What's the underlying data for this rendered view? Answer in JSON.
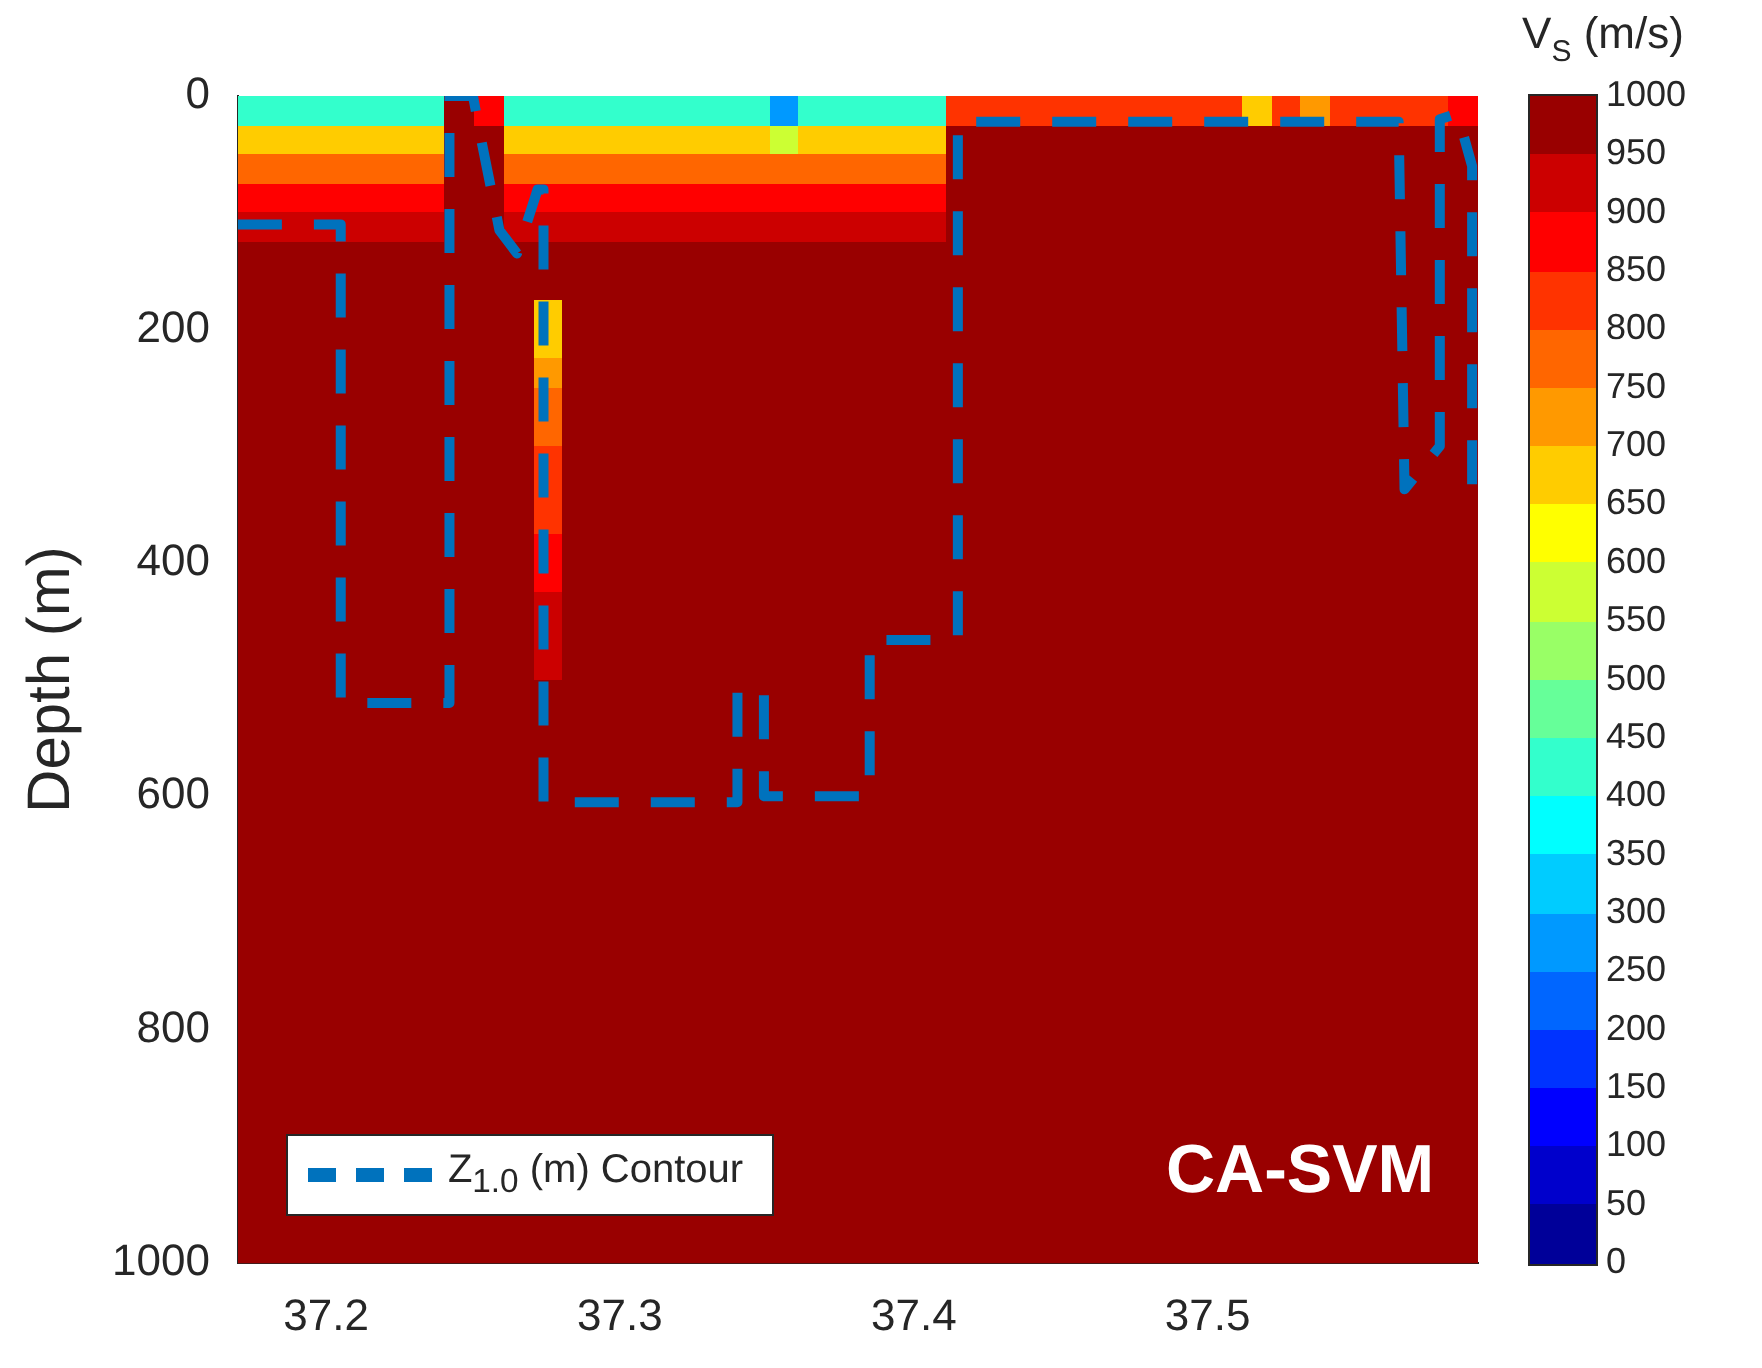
{
  "chart_data": {
    "type": "heatmap",
    "ylabel": "Depth (m)",
    "clabel": "V$_{S}$ (m/s)",
    "annotations": [
      "CA-SVM"
    ],
    "xlim": [
      37.17,
      37.592
    ],
    "xticks": [
      37.2,
      37.3,
      37.4,
      37.5
    ],
    "ylim": [
      1000,
      0
    ],
    "yticks": [
      0,
      200,
      400,
      600,
      800,
      1000
    ],
    "clim": [
      0,
      1000
    ],
    "cticks": [
      0,
      50,
      100,
      150,
      200,
      250,
      300,
      350,
      400,
      450,
      500,
      550,
      600,
      650,
      700,
      750,
      800,
      850,
      900,
      950,
      1000
    ],
    "legend": "bottom left",
    "cells": [
      [
        420,
        420,
        420,
        420,
        420,
        420,
        420,
        1000,
        850,
        420,
        420,
        420,
        420,
        420,
        420,
        420,
        420,
        420,
        250,
        420,
        420,
        420,
        420,
        420,
        820,
        820,
        820,
        820,
        820,
        820,
        820,
        820,
        820,
        820,
        650,
        820,
        700,
        820,
        820,
        820,
        820,
        880
      ],
      [
        660,
        660,
        660,
        660,
        660,
        660,
        660,
        1000,
        980,
        660,
        660,
        660,
        660,
        660,
        660,
        660,
        660,
        660,
        580,
        660,
        660,
        660,
        660,
        660,
        1000,
        1000,
        1000,
        1000,
        1000,
        1000,
        1000,
        1000,
        1000,
        1000,
        1000,
        1000,
        1000,
        1000,
        1000,
        1000,
        1000,
        1000
      ],
      [
        780,
        780,
        780,
        780,
        780,
        780,
        780,
        1000,
        1000,
        780,
        780,
        780,
        780,
        780,
        780,
        780,
        780,
        780,
        760,
        780,
        780,
        780,
        780,
        780,
        1000,
        1000,
        1000,
        1000,
        1000,
        1000,
        1000,
        1000,
        1000,
        1000,
        1000,
        1000,
        1000,
        1000,
        1000,
        1000,
        1000,
        1000
      ],
      [
        870,
        870,
        870,
        870,
        870,
        870,
        870,
        1000,
        1000,
        870,
        870,
        870,
        870,
        870,
        870,
        870,
        870,
        870,
        860,
        870,
        870,
        870,
        870,
        870,
        1000,
        1000,
        1000,
        1000,
        1000,
        1000,
        1000,
        1000,
        1000,
        1000,
        1000,
        1000,
        1000,
        1000,
        1000,
        1000,
        1000,
        1000
      ],
      [
        940,
        940,
        940,
        940,
        940,
        940,
        940,
        1000,
        1000,
        940,
        940,
        940,
        940,
        940,
        940,
        940,
        940,
        940,
        930,
        940,
        940,
        940,
        940,
        940,
        1000,
        1000,
        1000,
        1000,
        1000,
        1000,
        1000,
        1000,
        1000,
        1000,
        1000,
        1000,
        1000,
        1000,
        1000,
        1000,
        1000,
        1000
      ],
      [
        990,
        990,
        990,
        990,
        990,
        990,
        990,
        1000,
        1000,
        990,
        990,
        990,
        990,
        990,
        990,
        990,
        990,
        990,
        990,
        990,
        990,
        990,
        990,
        990,
        1000,
        1000,
        1000,
        1000,
        1000,
        1000,
        1000,
        1000,
        1000,
        1000,
        1000,
        1000,
        1000,
        1000,
        1000,
        1000,
        1000,
        1000
      ],
      [
        1000,
        1000,
        1000,
        1000,
        1000,
        1000,
        1000,
        1000,
        1000,
        1000,
        1000,
        1000,
        1000,
        1000,
        1000,
        1000,
        1000,
        1000,
        1000,
        1000,
        1000,
        1000,
        1000,
        1000,
        1000,
        1000,
        1000,
        1000,
        1000,
        1000,
        1000,
        1000,
        1000,
        1000,
        1000,
        1000,
        1000,
        1000,
        1000,
        1000,
        1000,
        1000
      ],
      [
        1000,
        1000,
        1000,
        1000,
        1000,
        1000,
        1000,
        1000,
        1000,
        1000,
        650,
        1000,
        1000,
        1000,
        1000,
        1000,
        1000,
        1000,
        1000,
        1000,
        1000,
        1000,
        1000,
        1000,
        1000,
        1000,
        1000,
        1000,
        1000,
        1000,
        1000,
        1000,
        1000,
        1000,
        1000,
        1000,
        1000,
        1000,
        1000,
        1000,
        1000,
        1000
      ],
      [
        1000,
        1000,
        1000,
        1000,
        1000,
        1000,
        1000,
        1000,
        1000,
        1000,
        680,
        1000,
        1000,
        1000,
        1000,
        1000,
        1000,
        1000,
        1000,
        1000,
        1000,
        1000,
        1000,
        1000,
        1000,
        1000,
        1000,
        1000,
        1000,
        1000,
        1000,
        1000,
        1000,
        1000,
        1000,
        1000,
        1000,
        1000,
        1000,
        1000,
        1000,
        1000
      ],
      [
        1000,
        1000,
        1000,
        1000,
        1000,
        1000,
        1000,
        1000,
        1000,
        1000,
        720,
        1000,
        1000,
        1000,
        1000,
        1000,
        1000,
        1000,
        1000,
        1000,
        1000,
        1000,
        1000,
        1000,
        1000,
        1000,
        1000,
        1000,
        1000,
        1000,
        1000,
        1000,
        1000,
        1000,
        1000,
        1000,
        1000,
        1000,
        1000,
        1000,
        1000,
        1000
      ],
      [
        1000,
        1000,
        1000,
        1000,
        1000,
        1000,
        1000,
        1000,
        1000,
        1000,
        760,
        1000,
        1000,
        1000,
        1000,
        1000,
        1000,
        1000,
        1000,
        1000,
        1000,
        1000,
        1000,
        1000,
        1000,
        1000,
        1000,
        1000,
        1000,
        1000,
        1000,
        1000,
        1000,
        1000,
        1000,
        1000,
        1000,
        1000,
        1000,
        1000,
        1000,
        1000
      ],
      [
        1000,
        1000,
        1000,
        1000,
        1000,
        1000,
        1000,
        1000,
        1000,
        1000,
        780,
        1000,
        1000,
        1000,
        1000,
        1000,
        1000,
        1000,
        1000,
        1000,
        1000,
        1000,
        1000,
        1000,
        1000,
        1000,
        1000,
        1000,
        1000,
        1000,
        1000,
        1000,
        1000,
        1000,
        1000,
        1000,
        1000,
        1000,
        1000,
        1000,
        1000,
        1000
      ],
      [
        1000,
        1000,
        1000,
        1000,
        1000,
        1000,
        1000,
        1000,
        1000,
        1000,
        800,
        1000,
        1000,
        1000,
        1000,
        1000,
        1000,
        1000,
        1000,
        1000,
        1000,
        1000,
        1000,
        1000,
        1000,
        1000,
        1000,
        1000,
        1000,
        1000,
        1000,
        1000,
        1000,
        1000,
        1000,
        1000,
        1000,
        1000,
        1000,
        1000,
        1000,
        1000
      ],
      [
        1000,
        1000,
        1000,
        1000,
        1000,
        1000,
        1000,
        1000,
        1000,
        1000,
        820,
        1000,
        1000,
        1000,
        1000,
        1000,
        1000,
        1000,
        1000,
        1000,
        1000,
        1000,
        1000,
        1000,
        1000,
        1000,
        1000,
        1000,
        1000,
        1000,
        1000,
        1000,
        1000,
        1000,
        1000,
        1000,
        1000,
        1000,
        1000,
        1000,
        1000,
        1000
      ],
      [
        1000,
        1000,
        1000,
        1000,
        1000,
        1000,
        1000,
        1000,
        1000,
        1000,
        840,
        1000,
        1000,
        1000,
        1000,
        1000,
        1000,
        1000,
        1000,
        1000,
        1000,
        1000,
        1000,
        1000,
        1000,
        1000,
        1000,
        1000,
        1000,
        1000,
        1000,
        1000,
        1000,
        1000,
        1000,
        1000,
        1000,
        1000,
        1000,
        1000,
        1000,
        1000
      ],
      [
        1000,
        1000,
        1000,
        1000,
        1000,
        1000,
        1000,
        1000,
        1000,
        1000,
        860,
        1000,
        1000,
        1000,
        1000,
        1000,
        1000,
        1000,
        1000,
        1000,
        1000,
        1000,
        1000,
        1000,
        1000,
        1000,
        1000,
        1000,
        1000,
        1000,
        1000,
        1000,
        1000,
        1000,
        1000,
        1000,
        1000,
        1000,
        1000,
        1000,
        1000,
        1000
      ],
      [
        1000,
        1000,
        1000,
        1000,
        1000,
        1000,
        1000,
        1000,
        1000,
        1000,
        880,
        1000,
        1000,
        1000,
        1000,
        1000,
        1000,
        1000,
        1000,
        1000,
        1000,
        1000,
        1000,
        1000,
        1000,
        1000,
        1000,
        1000,
        1000,
        1000,
        1000,
        1000,
        1000,
        1000,
        1000,
        1000,
        1000,
        1000,
        1000,
        1000,
        1000,
        1000
      ],
      [
        1000,
        1000,
        1000,
        1000,
        1000,
        1000,
        1000,
        1000,
        1000,
        1000,
        900,
        1000,
        1000,
        1000,
        1000,
        1000,
        1000,
        1000,
        1000,
        1000,
        1000,
        1000,
        1000,
        1000,
        1000,
        1000,
        1000,
        1000,
        1000,
        1000,
        1000,
        1000,
        1000,
        1000,
        1000,
        1000,
        1000,
        1000,
        1000,
        1000,
        1000,
        1000
      ],
      [
        1000,
        1000,
        1000,
        1000,
        1000,
        1000,
        1000,
        1000,
        1000,
        1000,
        910,
        1000,
        1000,
        1000,
        1000,
        1000,
        1000,
        1000,
        1000,
        1000,
        1000,
        1000,
        1000,
        1000,
        1000,
        1000,
        1000,
        1000,
        1000,
        1000,
        1000,
        1000,
        1000,
        1000,
        1000,
        1000,
        1000,
        1000,
        1000,
        1000,
        1000,
        1000
      ],
      [
        1000,
        1000,
        1000,
        1000,
        1000,
        1000,
        1000,
        1000,
        1000,
        1000,
        930,
        1000,
        1000,
        1000,
        1000,
        1000,
        1000,
        1000,
        1000,
        1000,
        1000,
        1000,
        1000,
        1000,
        1000,
        1000,
        1000,
        1000,
        1000,
        1000,
        1000,
        1000,
        1000,
        1000,
        1000,
        1000,
        1000,
        1000,
        1000,
        1000,
        1000,
        1000
      ],
      [
        1000,
        1000,
        1000,
        1000,
        1000,
        1000,
        1000,
        1000,
        1000,
        1000,
        950,
        1000,
        1000,
        1000,
        1000,
        1000,
        1000,
        1000,
        1000,
        1000,
        1000,
        1000,
        1000,
        1000,
        1000,
        1000,
        1000,
        1000,
        1000,
        1000,
        1000,
        1000,
        1000,
        1000,
        1000,
        1000,
        1000,
        1000,
        1000,
        1000,
        1000,
        1000
      ],
      [
        1000,
        1000,
        1000,
        1000,
        1000,
        1000,
        1000,
        1000,
        1000,
        1000,
        960,
        1000,
        1000,
        1000,
        1000,
        1000,
        1000,
        1000,
        1000,
        1000,
        1000,
        1000,
        1000,
        1000,
        1000,
        1000,
        1000,
        1000,
        1000,
        1000,
        1000,
        1000,
        1000,
        1000,
        1000,
        1000,
        1000,
        1000,
        1000,
        1000,
        1000,
        1000
      ],
      [
        1000,
        1000,
        1000,
        1000,
        1000,
        1000,
        1000,
        1000,
        1000,
        1000,
        980,
        1000,
        1000,
        1000,
        1000,
        1000,
        1000,
        1000,
        1000,
        1000,
        1000,
        1000,
        1000,
        1000,
        1000,
        1000,
        1000,
        1000,
        1000,
        1000,
        1000,
        1000,
        1000,
        1000,
        1000,
        1000,
        1000,
        1000,
        1000,
        1000,
        1000,
        1000
      ],
      [
        1000,
        1000,
        1000,
        1000,
        1000,
        1000,
        1000,
        1000,
        1000,
        1000,
        1000,
        1000,
        1000,
        1000,
        1000,
        1000,
        1000,
        1000,
        1000,
        1000,
        1000,
        1000,
        1000,
        1000,
        1000,
        1000,
        1000,
        1000,
        1000,
        1000,
        1000,
        1000,
        1000,
        1000,
        1000,
        1000,
        1000,
        1000,
        1000,
        1000,
        1000,
        1000
      ],
      [
        1000,
        1000,
        1000,
        1000,
        1000,
        1000,
        1000,
        1000,
        1000,
        1000,
        1000,
        1000,
        1000,
        1000,
        1000,
        1000,
        1000,
        1000,
        1000,
        1000,
        1000,
        1000,
        1000,
        1000,
        1000,
        1000,
        1000,
        1000,
        1000,
        1000,
        1000,
        1000,
        1000,
        1000,
        1000,
        1000,
        1000,
        1000,
        1000,
        1000,
        1000,
        1000
      ],
      [
        1000,
        1000,
        1000,
        1000,
        1000,
        1000,
        1000,
        1000,
        1000,
        1000,
        1000,
        1000,
        1000,
        1000,
        1000,
        1000,
        1000,
        1000,
        1000,
        1000,
        1000,
        1000,
        1000,
        1000,
        1000,
        1000,
        1000,
        1000,
        1000,
        1000,
        1000,
        1000,
        1000,
        1000,
        1000,
        1000,
        1000,
        1000,
        1000,
        1000,
        1000,
        1000
      ],
      [
        1000,
        1000,
        1000,
        1000,
        1000,
        1000,
        1000,
        1000,
        1000,
        1000,
        1000,
        1000,
        1000,
        1000,
        1000,
        1000,
        1000,
        1000,
        1000,
        1000,
        1000,
        1000,
        1000,
        1000,
        1000,
        1000,
        1000,
        1000,
        1000,
        1000,
        1000,
        1000,
        1000,
        1000,
        1000,
        1000,
        1000,
        1000,
        1000,
        1000,
        1000,
        1000
      ],
      [
        1000,
        1000,
        1000,
        1000,
        1000,
        1000,
        1000,
        1000,
        1000,
        1000,
        1000,
        1000,
        1000,
        1000,
        1000,
        1000,
        1000,
        1000,
        1000,
        1000,
        1000,
        1000,
        1000,
        1000,
        1000,
        1000,
        1000,
        1000,
        1000,
        1000,
        1000,
        1000,
        1000,
        1000,
        1000,
        1000,
        1000,
        1000,
        1000,
        1000,
        1000,
        1000
      ],
      [
        1000,
        1000,
        1000,
        1000,
        1000,
        1000,
        1000,
        1000,
        1000,
        1000,
        1000,
        1000,
        1000,
        1000,
        1000,
        1000,
        1000,
        1000,
        1000,
        1000,
        1000,
        1000,
        1000,
        1000,
        1000,
        1000,
        1000,
        1000,
        1000,
        1000,
        1000,
        1000,
        1000,
        1000,
        1000,
        1000,
        1000,
        1000,
        1000,
        1000,
        1000,
        1000
      ],
      [
        1000,
        1000,
        1000,
        1000,
        1000,
        1000,
        1000,
        1000,
        1000,
        1000,
        1000,
        1000,
        1000,
        1000,
        1000,
        1000,
        1000,
        1000,
        1000,
        1000,
        1000,
        1000,
        1000,
        1000,
        1000,
        1000,
        1000,
        1000,
        1000,
        1000,
        1000,
        1000,
        1000,
        1000,
        1000,
        1000,
        1000,
        1000,
        1000,
        1000,
        1000,
        1000
      ],
      [
        1000,
        1000,
        1000,
        1000,
        1000,
        1000,
        1000,
        1000,
        1000,
        1000,
        1000,
        1000,
        1000,
        1000,
        1000,
        1000,
        1000,
        1000,
        1000,
        1000,
        1000,
        1000,
        1000,
        1000,
        1000,
        1000,
        1000,
        1000,
        1000,
        1000,
        1000,
        1000,
        1000,
        1000,
        1000,
        1000,
        1000,
        1000,
        1000,
        1000,
        1000,
        1000
      ],
      [
        1000,
        1000,
        1000,
        1000,
        1000,
        1000,
        1000,
        1000,
        1000,
        1000,
        1000,
        1000,
        1000,
        1000,
        1000,
        1000,
        1000,
        1000,
        1000,
        1000,
        1000,
        1000,
        1000,
        1000,
        1000,
        1000,
        1000,
        1000,
        1000,
        1000,
        1000,
        1000,
        1000,
        1000,
        1000,
        1000,
        1000,
        1000,
        1000,
        1000,
        1000,
        1000
      ],
      [
        1000,
        1000,
        1000,
        1000,
        1000,
        1000,
        1000,
        1000,
        1000,
        1000,
        1000,
        1000,
        1000,
        1000,
        1000,
        1000,
        1000,
        1000,
        1000,
        1000,
        1000,
        1000,
        1000,
        1000,
        1000,
        1000,
        1000,
        1000,
        1000,
        1000,
        1000,
        1000,
        1000,
        1000,
        1000,
        1000,
        1000,
        1000,
        1000,
        1000,
        1000,
        1000
      ],
      [
        1000,
        1000,
        1000,
        1000,
        1000,
        1000,
        1000,
        1000,
        1000,
        1000,
        1000,
        1000,
        1000,
        1000,
        1000,
        1000,
        1000,
        1000,
        1000,
        1000,
        1000,
        1000,
        1000,
        1000,
        1000,
        1000,
        1000,
        1000,
        1000,
        1000,
        1000,
        1000,
        1000,
        1000,
        1000,
        1000,
        1000,
        1000,
        1000,
        1000,
        1000,
        1000
      ],
      [
        1000,
        1000,
        1000,
        1000,
        1000,
        1000,
        1000,
        1000,
        1000,
        1000,
        1000,
        1000,
        1000,
        1000,
        1000,
        1000,
        1000,
        1000,
        1000,
        1000,
        1000,
        1000,
        1000,
        1000,
        1000,
        1000,
        1000,
        1000,
        1000,
        1000,
        1000,
        1000,
        1000,
        1000,
        1000,
        1000,
        1000,
        1000,
        1000,
        1000,
        1000,
        1000
      ],
      [
        1000,
        1000,
        1000,
        1000,
        1000,
        1000,
        1000,
        1000,
        1000,
        1000,
        1000,
        1000,
        1000,
        1000,
        1000,
        1000,
        1000,
        1000,
        1000,
        1000,
        1000,
        1000,
        1000,
        1000,
        1000,
        1000,
        1000,
        1000,
        1000,
        1000,
        1000,
        1000,
        1000,
        1000,
        1000,
        1000,
        1000,
        1000,
        1000,
        1000,
        1000,
        1000
      ],
      [
        1000,
        1000,
        null,
        null,
        null,
        null,
        null,
        null,
        null,
        null,
        null,
        null,
        null,
        null,
        null,
        null,
        null,
        null,
        1000,
        1000,
        1000,
        1000,
        1000,
        1000,
        1000,
        1000,
        1000,
        1000,
        1000,
        1000,
        1000,
        1000,
        1000,
        1000,
        1000,
        1000,
        1000,
        1000,
        1000,
        1000,
        1000,
        1000
      ],
      [
        1000,
        1000,
        null,
        null,
        null,
        null,
        null,
        null,
        null,
        null,
        null,
        null,
        null,
        null,
        null,
        null,
        null,
        null,
        1000,
        1000,
        1000,
        1000,
        1000,
        1000,
        1000,
        1000,
        1000,
        1000,
        1000,
        1000,
        1000,
        1000,
        1000,
        1000,
        1000,
        1000,
        1000,
        1000,
        1000,
        1000,
        1000,
        1000
      ],
      [
        1000,
        1000,
        1000,
        1000,
        1000,
        1000,
        1000,
        1000,
        1000,
        1000,
        1000,
        1000,
        1000,
        1000,
        1000,
        1000,
        1000,
        1000,
        1000,
        1000,
        1000,
        1000,
        1000,
        1000,
        1000,
        1000,
        1000,
        1000,
        1000,
        1000,
        1000,
        1000,
        1000,
        1000,
        1000,
        1000,
        1000,
        1000,
        1000,
        1000,
        1000,
        1000
      ],
      [
        1000,
        1000,
        1000,
        1000,
        1000,
        1000,
        1000,
        1000,
        1000,
        1000,
        1000,
        1000,
        1000,
        1000,
        1000,
        1000,
        1000,
        1000,
        1000,
        1000,
        1000,
        1000,
        1000,
        1000,
        1000,
        1000,
        1000,
        1000,
        1000,
        1000,
        1000,
        1000,
        1000,
        1000,
        1000,
        1000,
        1000,
        1000,
        1000,
        1000,
        1000,
        1000
      ]
    ],
    "series": [
      {
        "name": "Z$_{1.0}$ (m) Contour",
        "type": "line",
        "line_style": "dashed",
        "color": "#0072bd",
        "x": [
          37.17,
          37.205,
          37.205,
          37.242,
          37.242,
          37.25,
          37.253,
          37.259,
          37.265,
          37.272,
          37.274,
          37.274,
          37.34,
          37.34,
          37.349,
          37.349,
          37.385,
          37.385,
          37.415,
          37.415,
          37.565,
          37.567,
          37.579,
          37.579,
          37.585,
          37.59,
          37.59
        ],
        "values": [
          110,
          110,
          520,
          520,
          0,
          0,
          40,
          115,
          135,
          80,
          80,
          605,
          605,
          510,
          510,
          600,
          600,
          466,
          466,
          22,
          22,
          337,
          300,
          20,
          15,
          60,
          344
        ]
      }
    ]
  }
}
